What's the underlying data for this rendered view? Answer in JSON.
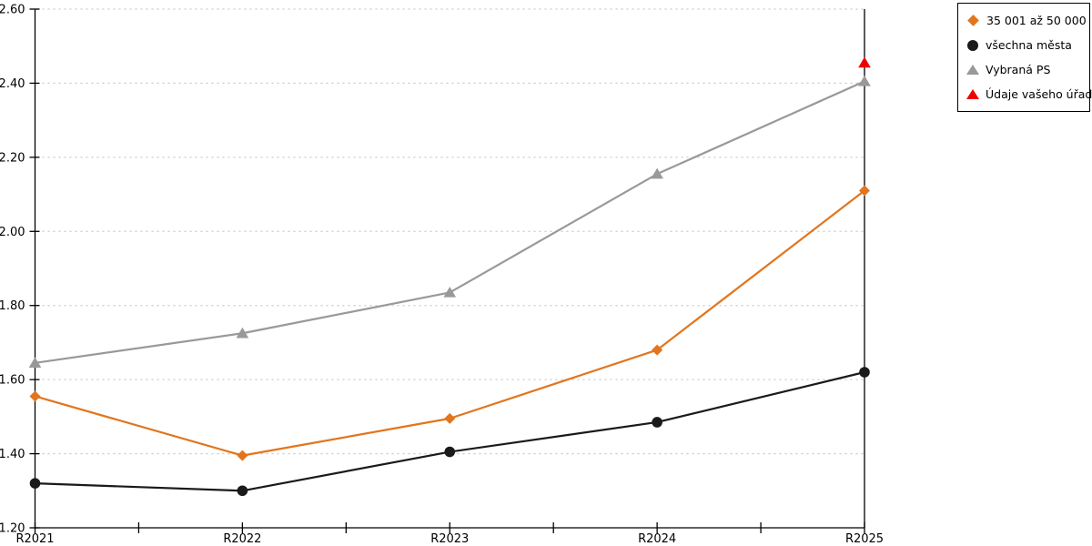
{
  "chart_data": {
    "type": "line",
    "categories": [
      "R2021",
      "R2022",
      "R2023",
      "R2024",
      "R2025"
    ],
    "series": [
      {
        "name": "35 001 až 50 000",
        "marker": "diamond",
        "color": "#E2751D",
        "line": true,
        "values": [
          1.555,
          1.395,
          1.495,
          1.68,
          2.11
        ]
      },
      {
        "name": "všechna města",
        "marker": "circle",
        "color": "#1A1A1A",
        "line": true,
        "values": [
          1.32,
          1.3,
          1.405,
          1.485,
          1.62
        ]
      },
      {
        "name": "Vybraná PS",
        "marker": "triangle",
        "color": "#999999",
        "line": true,
        "values": [
          1.645,
          1.725,
          1.835,
          2.155,
          2.405
        ]
      },
      {
        "name": "Údaje vašeho úřadu",
        "marker": "triangle",
        "color": "#EE0000",
        "line": false,
        "values": [
          null,
          null,
          null,
          null,
          2.455
        ]
      }
    ],
    "title": "",
    "xlabel": "",
    "ylabel": "",
    "ylim": [
      1.2,
      2.6
    ],
    "ytick_step": 0.2,
    "ytick_labels": [
      "1.20",
      "1.40",
      "1.60",
      "1.80",
      "2.00",
      "2.20",
      "2.40",
      "2.60"
    ],
    "x_minor_ticks_between_categories": 1,
    "grid": "horizontal-dotted",
    "legend_position": "top-right"
  },
  "colors": {
    "background": "#FFFFFF",
    "axis": "#000000",
    "grid": "#C9C9C9",
    "text": "#000000"
  }
}
